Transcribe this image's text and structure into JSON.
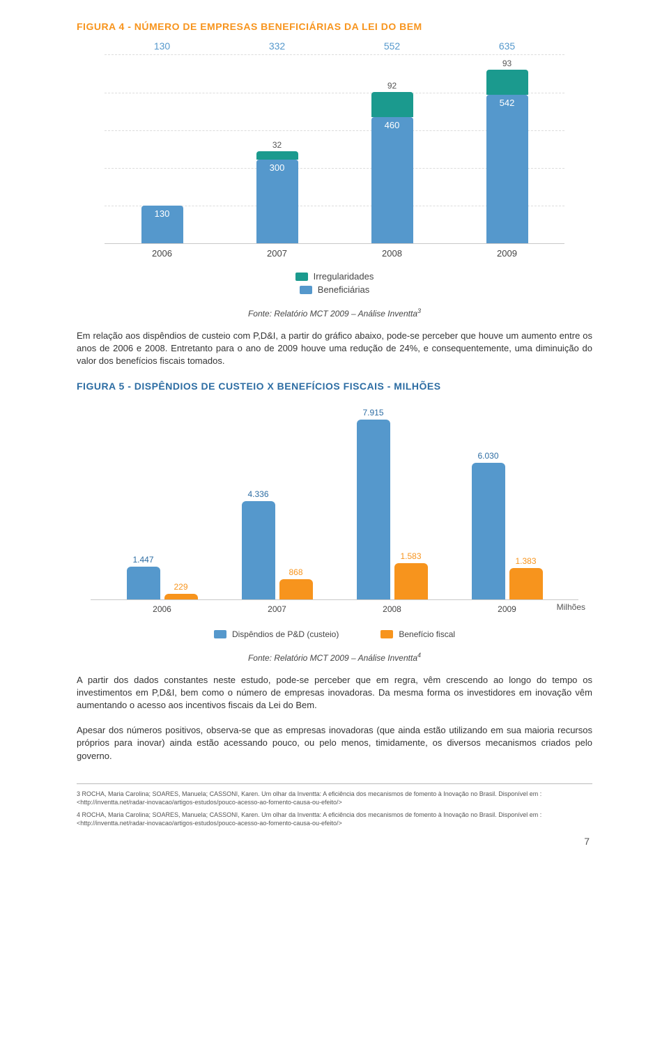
{
  "figure4": {
    "title": "FIGURA 4 - NÚMERO DE EMPRESAS BENEFICIÁRIAS DA LEI DO BEM",
    "top_totals": [
      "130",
      "332",
      "552",
      "635"
    ],
    "bars": [
      {
        "year": "2006",
        "irreg": 0,
        "benef": 130,
        "benef_label": "130",
        "irreg_label": ""
      },
      {
        "year": "2007",
        "irreg": 32,
        "benef": 300,
        "benef_label": "300",
        "irreg_label": "32"
      },
      {
        "year": "2008",
        "irreg": 92,
        "benef": 460,
        "benef_label": "460",
        "irreg_label": "92"
      },
      {
        "year": "2009",
        "irreg": 93,
        "benef": 542,
        "benef_label": "542",
        "irreg_label": "93"
      }
    ],
    "max_total": 700,
    "legend": {
      "irreg": "Irregularidades",
      "benef": "Beneficiárias"
    },
    "colors": {
      "irreg": "#1b9a8e",
      "benef": "#5598cc"
    },
    "source": "Fonte: Relatório MCT 2009 – Análise Inventta",
    "source_sup": "3"
  },
  "paragraph1": "Em relação aos dispêndios de custeio com P,D&I, a partir do gráfico abaixo, pode-se perceber que houve um aumento entre os anos de 2006 e 2008. Entretanto para o ano de 2009 houve uma redução de 24%, e consequentemente, uma diminuição do valor dos benefícios fiscais tomados.",
  "figure5": {
    "title": "FIGURA 5 - DISPÊNDIOS DE CUSTEIO X BENEFÍCIOS FISCAIS - MILHÕES",
    "years": [
      "2006",
      "2007",
      "2008",
      "2009"
    ],
    "groups": [
      {
        "blue": 1447,
        "blue_label": "1.447",
        "orange": 229,
        "orange_label": "229"
      },
      {
        "blue": 4336,
        "blue_label": "4.336",
        "orange": 868,
        "orange_label": "868"
      },
      {
        "blue": 7915,
        "blue_label": "7.915",
        "orange": 1583,
        "orange_label": "1.583"
      },
      {
        "blue": 6030,
        "blue_label": "6.030",
        "orange": 1383,
        "orange_label": "1.383"
      }
    ],
    "max": 8000,
    "unit": "Milhões",
    "legend": {
      "blue": "Dispêndios de P&D (custeio)",
      "orange": "Benefício fiscal"
    },
    "colors": {
      "blue": "#5598cc",
      "orange": "#f7941d"
    },
    "source": "Fonte: Relatório MCT 2009 – Análise Inventta",
    "source_sup": "4"
  },
  "paragraph2": "A partir dos dados constantes neste estudo, pode-se perceber que em regra, vêm crescendo ao longo do tempo os investimentos em P,D&I, bem como o número de empresas inovadoras. Da mesma forma os investidores em inovação vêm aumentando o acesso aos incentivos fiscais da Lei do Bem.",
  "paragraph3": "Apesar dos números positivos, observa-se que as empresas inovadoras (que ainda estão utilizando em sua maioria recursos próprios para inovar) ainda estão acessando pouco, ou pelo menos, timidamente, os diversos mecanismos criados pelo governo.",
  "footnotes": [
    "3 ROCHA, Maria Carolina; SOARES, Manuela; CASSONI, Karen. Um olhar da Inventta: A eficiência dos mecanismos de fomento à Inovação no Brasil. Disponível em : <http://inventta.net/radar-inovacao/artigos-estudos/pouco-acesso-ao-fomento-causa-ou-efeito/>",
    "4 ROCHA, Maria Carolina; SOARES, Manuela; CASSONI, Karen. Um olhar da Inventta: A eficiência dos mecanismos de fomento à Inovação no Brasil. Disponível em : <http://inventta.net/radar-inovacao/artigos-estudos/pouco-acesso-ao-fomento-causa-ou-efeito/>"
  ],
  "page_number": "7"
}
